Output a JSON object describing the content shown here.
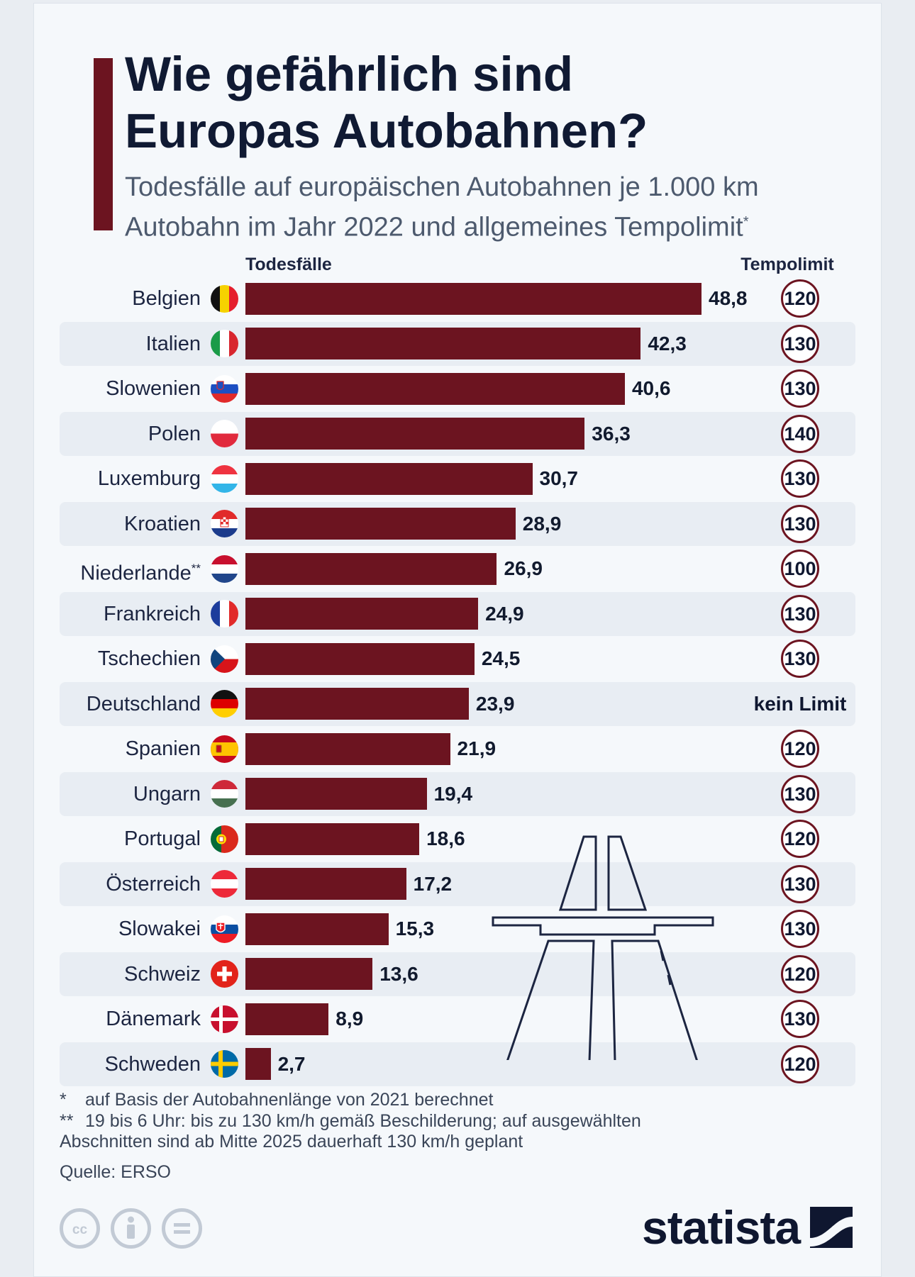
{
  "title_line1": "Wie gefährlich sind",
  "title_line2": "Europas Autobahnen?",
  "subtitle_line1": "Todesfälle auf europäischen Autobahnen je 1.000 km",
  "subtitle_line2": "Autobahn im Jahr 2022 und allgemeines Tempolimit",
  "subtitle_mark": "*",
  "accent_color": "#6c1420",
  "chart_data": {
    "type": "bar",
    "orientation": "horizontal",
    "series_header": "Todesfälle",
    "limit_header": "Tempolimit",
    "xlim": [
      0,
      48.8
    ],
    "categories": [
      "Belgien",
      "Italien",
      "Slowenien",
      "Polen",
      "Luxemburg",
      "Kroatien",
      "Niederlande",
      "Frankreich",
      "Tschechien",
      "Deutschland",
      "Spanien",
      "Ungarn",
      "Portugal",
      "Österreich",
      "Slowakei",
      "Schweiz",
      "Dänemark",
      "Schweden"
    ],
    "category_marks": [
      "",
      "",
      "",
      "",
      "",
      "",
      "**",
      "",
      "",
      "",
      "",
      "",
      "",
      "",
      "",
      "",
      "",
      ""
    ],
    "values": [
      48.8,
      42.3,
      40.6,
      36.3,
      30.7,
      28.9,
      26.9,
      24.9,
      24.5,
      23.9,
      21.9,
      19.4,
      18.6,
      17.2,
      15.3,
      13.6,
      8.9,
      2.7
    ],
    "value_labels": [
      "48,8",
      "42,3",
      "40,6",
      "36,3",
      "30,7",
      "28,9",
      "26,9",
      "24,9",
      "24,5",
      "23,9",
      "21,9",
      "19,4",
      "18,6",
      "17,2",
      "15,3",
      "13,6",
      "8,9",
      "2,7"
    ],
    "speed_limits": [
      "120",
      "130",
      "130",
      "140",
      "130",
      "130",
      "100",
      "130",
      "130",
      "kein Limit",
      "120",
      "130",
      "120",
      "130",
      "130",
      "120",
      "130",
      "120"
    ],
    "flags": [
      "belgium-flag-icon",
      "italy-flag-icon",
      "slovenia-flag-icon",
      "poland-flag-icon",
      "luxembourg-flag-icon",
      "croatia-flag-icon",
      "netherlands-flag-icon",
      "france-flag-icon",
      "czechia-flag-icon",
      "germany-flag-icon",
      "spain-flag-icon",
      "hungary-flag-icon",
      "portugal-flag-icon",
      "austria-flag-icon",
      "slovakia-flag-icon",
      "switzerland-flag-icon",
      "denmark-flag-icon",
      "sweden-flag-icon"
    ],
    "bar_color": "#6c1420",
    "grid": false
  },
  "footnotes": {
    "f1_mark": "*",
    "f1_text": "auf Basis der Autobahnenlänge von 2021 berechnet",
    "f2_mark": "**",
    "f2_line1": "19 bis 6 Uhr: bis zu 130 km/h gemäß Beschilderung; auf ausgewählten",
    "f2_line2": "Abschnitten sind ab Mitte 2025 dauerhaft 130 km/h geplant",
    "source": "Quelle: ERSO"
  },
  "license_icons": [
    "cc-icon",
    "attribution-icon",
    "no-derivatives-icon"
  ],
  "logo_text": "statista"
}
